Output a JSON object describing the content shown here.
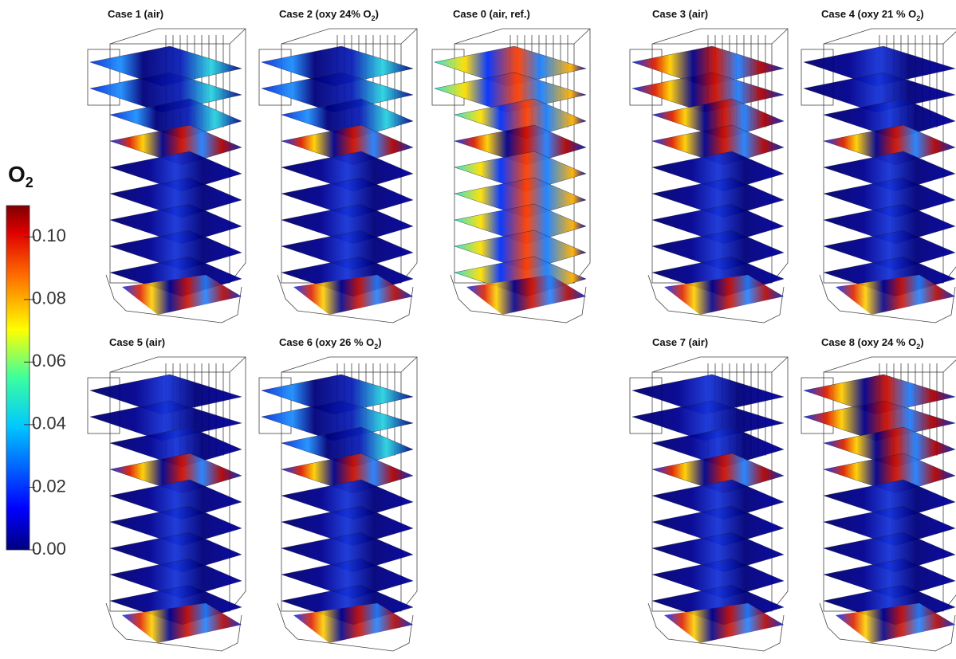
{
  "figure": {
    "panels": [
      {
        "title": [
          "Case 1 (air)"
        ]
      },
      {
        "title": [
          "Case 2 (oxy 24% O",
          "2",
          ")"
        ]
      },
      {
        "title": [
          "Case 0 (air, ref.)"
        ]
      },
      {
        "title": [
          "Case 3 (air)"
        ]
      },
      {
        "title": [
          "Case 4 (oxy 21 % O",
          "2",
          ")"
        ]
      },
      {
        "title": [
          "Case 5 (air)"
        ]
      },
      {
        "title": [
          "Case 6 (oxy 26 % O",
          "2",
          ")"
        ]
      },
      {
        "title": [
          "Case 7 (air)"
        ]
      },
      {
        "title": [
          "Case 8 (oxy 24 % O",
          "2",
          ")"
        ]
      }
    ],
    "colorbar": {
      "label": [
        "O",
        "2"
      ],
      "lim": [
        0,
        0.11
      ],
      "ticks": [
        {
          "value": 0,
          "label": "0.00"
        },
        {
          "value": 0.02,
          "label": "0.02"
        },
        {
          "value": 0.04,
          "label": "0.04"
        },
        {
          "value": 0.06,
          "label": "0.06"
        },
        {
          "value": 0.08,
          "label": "0.08"
        },
        {
          "value": 0.1,
          "label": "0.10"
        }
      ]
    }
  }
}
